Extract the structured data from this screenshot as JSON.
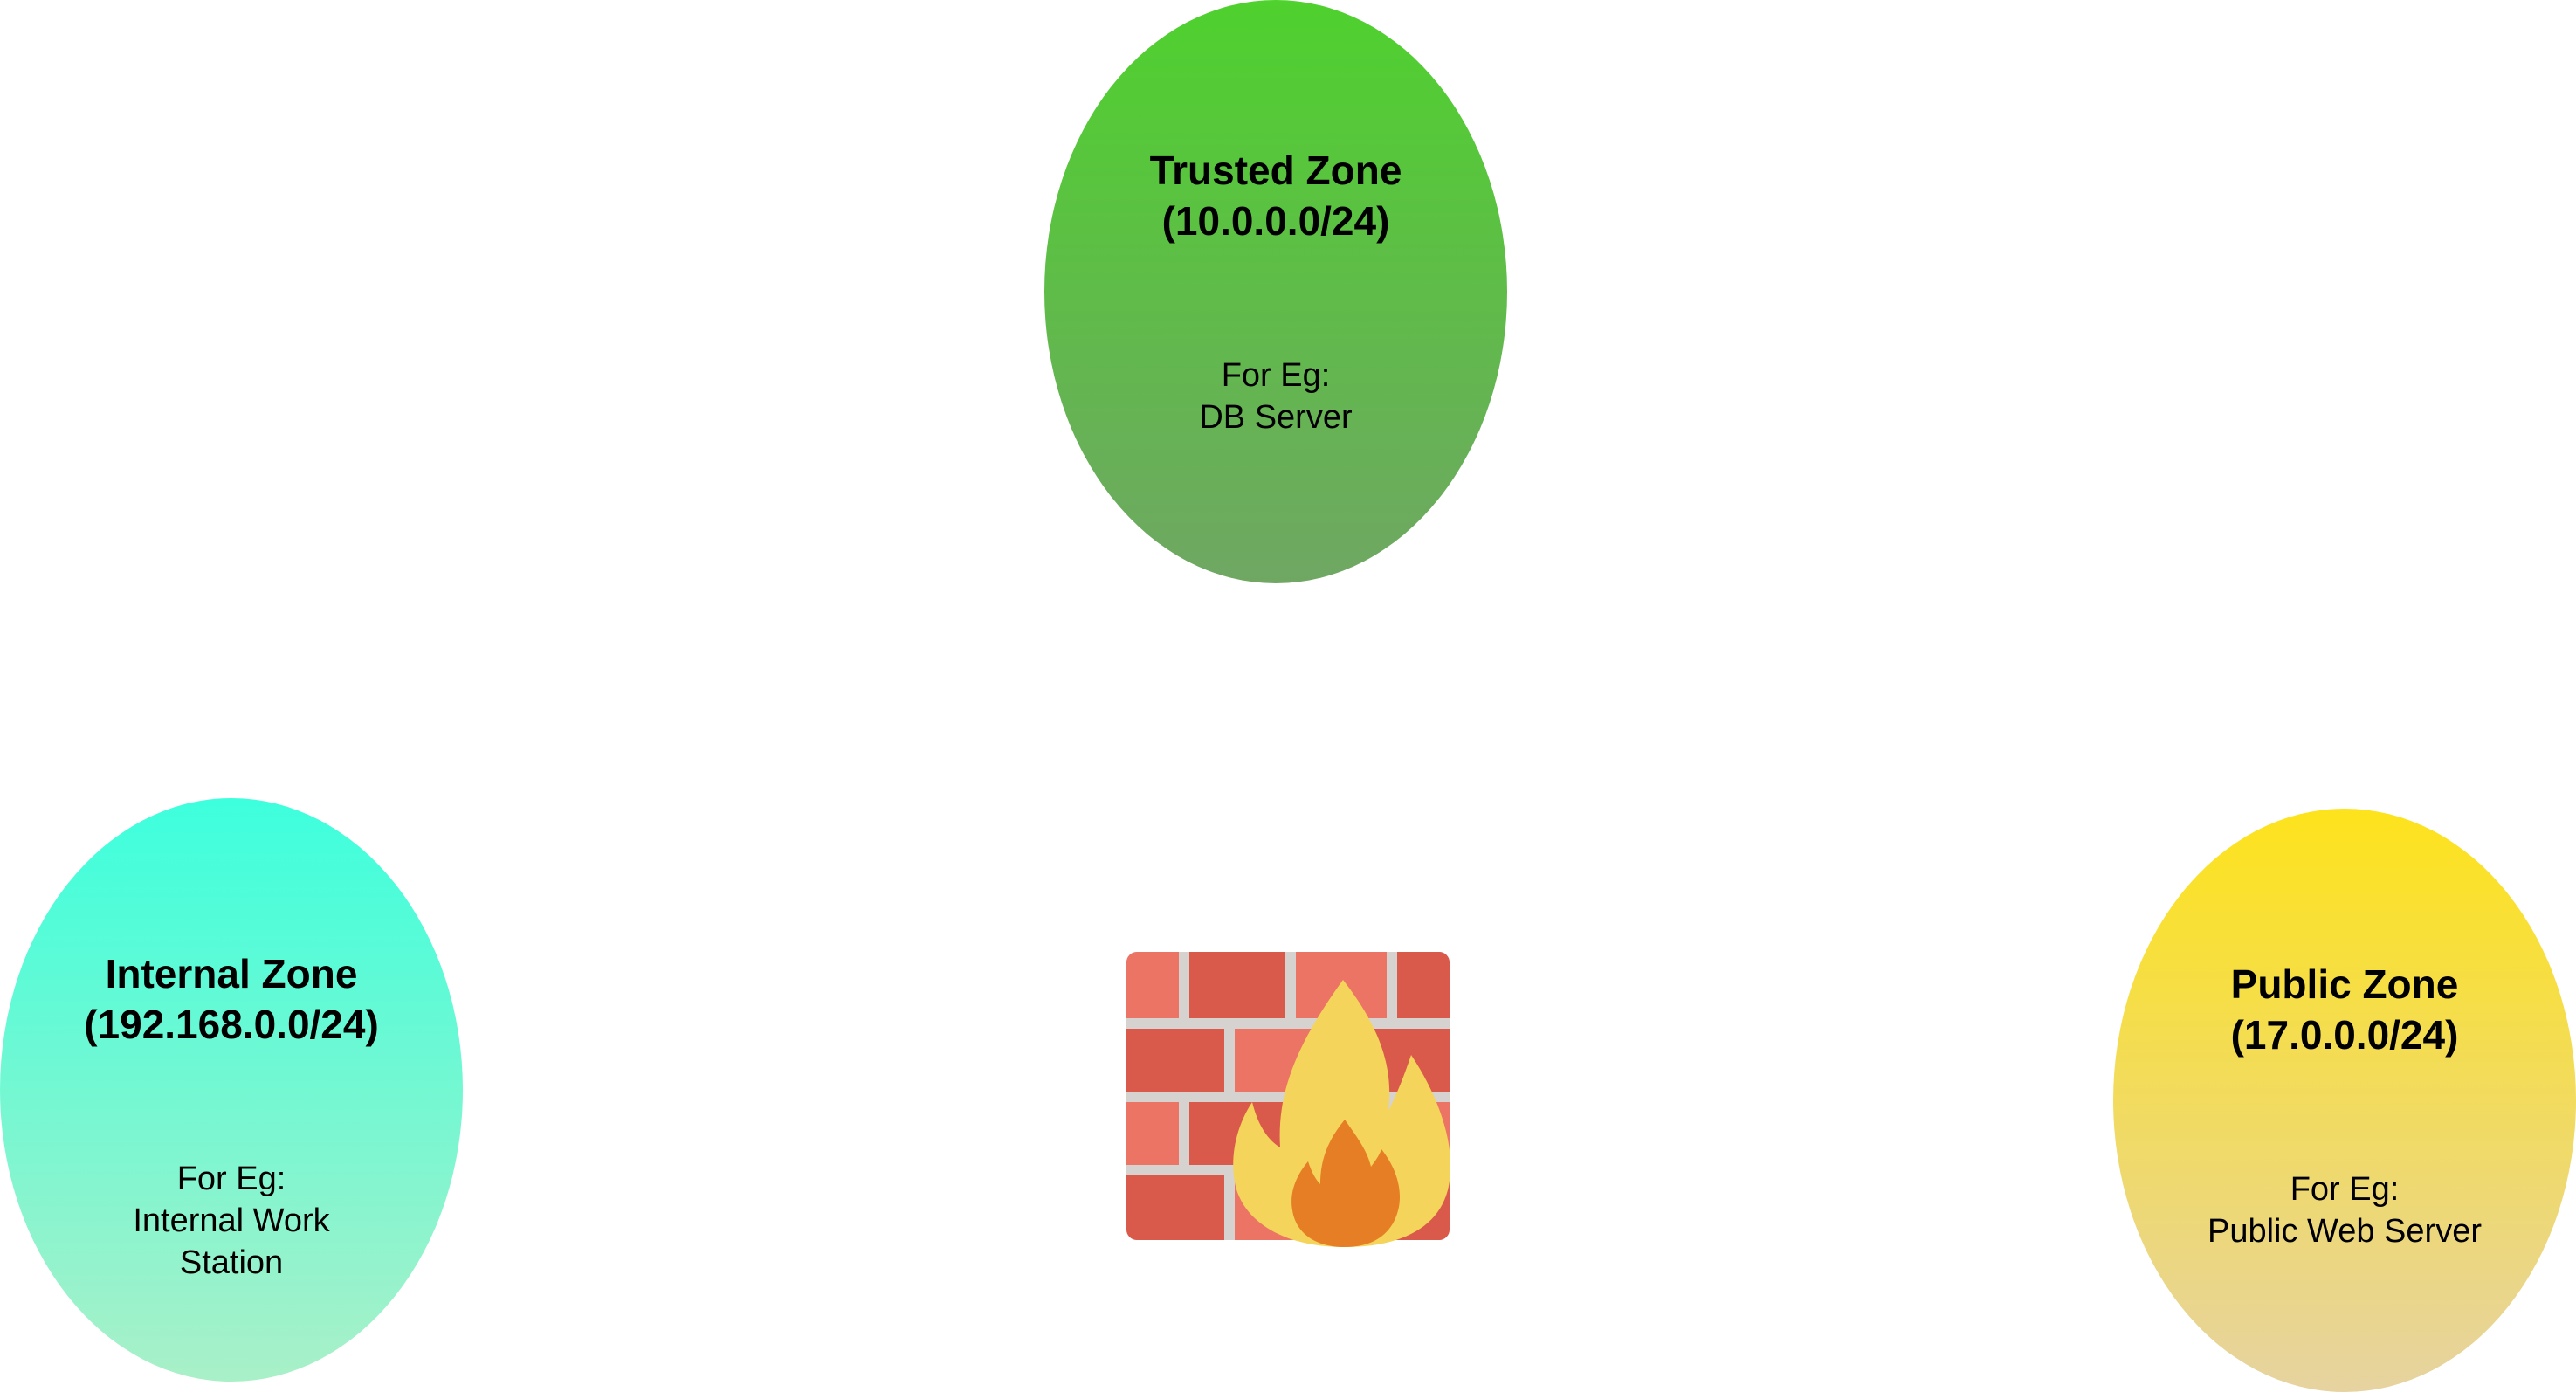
{
  "zones": {
    "trusted": {
      "name": "Trusted Zone",
      "subnet": "(10.0.0.0/24)",
      "example_label": "For Eg:",
      "example_lines": [
        "DB Server"
      ],
      "color_top": "#4fd12e",
      "color_bottom": "#6fa763"
    },
    "internal": {
      "name": "Internal Zone",
      "subnet": "(192.168.0.0/24)",
      "example_label": "For Eg:",
      "example_lines": [
        "Internal Work",
        "Station"
      ],
      "color_top": "#3dffdd",
      "color_bottom": "#a9f0c8"
    },
    "public": {
      "name": "Public Zone",
      "subnet": "(17.0.0.0/24)",
      "example_label": "For Eg:",
      "example_lines": [
        "Public Web Server"
      ],
      "color_top": "#fde31c",
      "color_bottom": "#e6d3a0"
    }
  },
  "firewall": {
    "icon": "firewall-icon",
    "brick_color": "#d9594b",
    "brick_light_color": "#ec7465",
    "mortar_color": "#d6d2cf",
    "flame_outer_color": "#f5d45b",
    "flame_inner_color": "#e57e25"
  }
}
